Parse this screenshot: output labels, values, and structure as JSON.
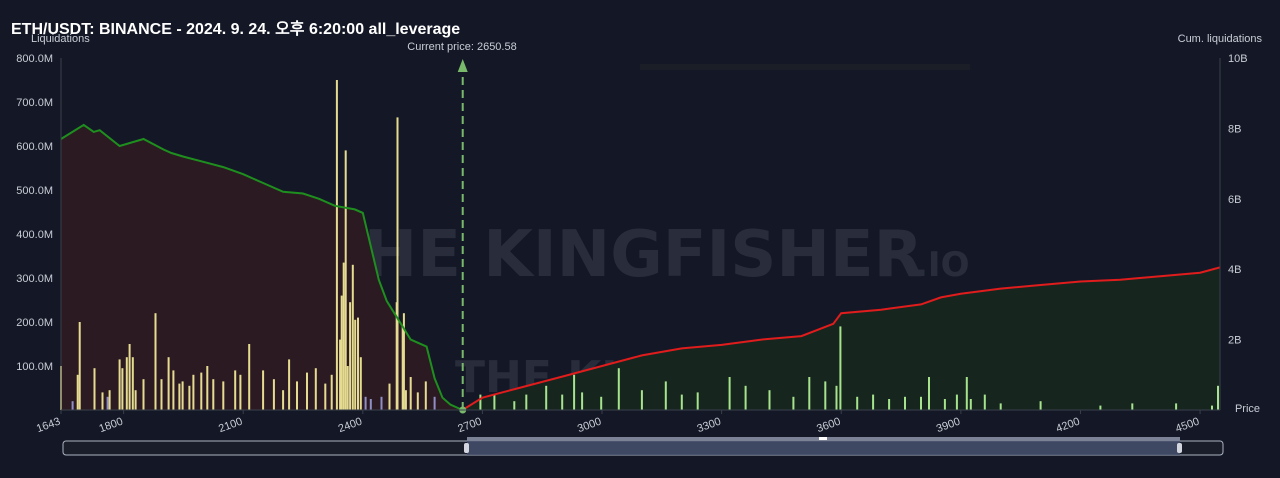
{
  "header": {
    "title": "ETH/USDT: BINANCE - 2024. 9. 24. 오후 6:20:00 all_leverage"
  },
  "watermark": {
    "text": "THE KINGFISHER",
    "suffix": ".IO"
  },
  "colors": {
    "background": "#141826",
    "long_area": "#2b1a22",
    "short_area": "#16261f",
    "long_line": "#1e8f1e",
    "short_line": "#e01c1c",
    "bar_long": "#e6dc91",
    "bar_short": "#a6e38c",
    "bar_small": "#8f8fc6",
    "current_price": "#79b96c"
  },
  "chart_data": {
    "type": "bar",
    "xlabel": "Price",
    "ylabel_left": "Liquidations",
    "ylabel_right": "Cum. liquidations",
    "current_price_label": "Current price: 2650.58",
    "current_price": 2650.58,
    "xlim": [
      1643,
      4550
    ],
    "x_ticks": [
      "1643",
      "1800",
      "2100",
      "2400",
      "2700",
      "3000",
      "3300",
      "3600",
      "3900",
      "4200",
      "4500"
    ],
    "x_tick_values": [
      1643,
      1800,
      2100,
      2400,
      2700,
      3000,
      3300,
      3600,
      3900,
      4200,
      4500
    ],
    "ylim_left": [
      0,
      800
    ],
    "y_ticks_left": [
      "100.0M",
      "200.0M",
      "300.0M",
      "400.0M",
      "500.0M",
      "600.0M",
      "700.0M",
      "800.0M"
    ],
    "y_tick_values_left": [
      100,
      200,
      300,
      400,
      500,
      600,
      700,
      800
    ],
    "ylim_right": [
      0,
      10
    ],
    "y_ticks_right": [
      "2B",
      "4B",
      "6B",
      "8B",
      "10B"
    ],
    "y_tick_values_right": [
      2,
      4,
      6,
      8,
      10
    ],
    "cum_long": {
      "x": [
        1643,
        1700,
        1725,
        1740,
        1790,
        1850,
        1900,
        1920,
        1950,
        2000,
        2050,
        2100,
        2150,
        2200,
        2250,
        2290,
        2330,
        2380,
        2400,
        2440,
        2460,
        2490,
        2520,
        2540,
        2560,
        2580,
        2600,
        2620,
        2650
      ],
      "y": [
        7.7,
        8.1,
        7.9,
        7.95,
        7.5,
        7.7,
        7.4,
        7.3,
        7.2,
        7.05,
        6.9,
        6.7,
        6.45,
        6.2,
        6.15,
        6.0,
        5.8,
        5.7,
        5.6,
        3.7,
        3.1,
        2.55,
        2.0,
        1.9,
        1.8,
        0.9,
        0.35,
        0.15,
        0.0
      ]
    },
    "cum_short": {
      "x": [
        2650,
        2700,
        2800,
        2900,
        3000,
        3100,
        3200,
        3300,
        3400,
        3500,
        3580,
        3600,
        3700,
        3800,
        3850,
        3900,
        4000,
        4100,
        4200,
        4300,
        4400,
        4500,
        4550
      ],
      "y": [
        0.0,
        0.35,
        0.65,
        0.95,
        1.25,
        1.55,
        1.75,
        1.85,
        2.0,
        2.1,
        2.45,
        2.75,
        2.85,
        3.0,
        3.2,
        3.3,
        3.45,
        3.55,
        3.65,
        3.7,
        3.8,
        3.9,
        4.05
      ]
    },
    "bars": {
      "x": [
        1643,
        1672,
        1685,
        1690,
        1727,
        1747,
        1760,
        1765,
        1790,
        1797,
        1808,
        1815,
        1823,
        1830,
        1850,
        1880,
        1895,
        1913,
        1925,
        1940,
        1948,
        1965,
        1975,
        1995,
        2010,
        2025,
        2050,
        2080,
        2093,
        2115,
        2150,
        2177,
        2200,
        2215,
        2235,
        2260,
        2282,
        2306,
        2322,
        2335,
        2343,
        2347,
        2352,
        2357,
        2362,
        2368,
        2375,
        2381,
        2388,
        2395,
        2407,
        2420,
        2447,
        2467,
        2485,
        2487,
        2500,
        2503,
        2508,
        2520,
        2538,
        2558,
        2580,
        2695,
        2730,
        2780,
        2810,
        2860,
        2900,
        2930,
        2950,
        2998,
        3042,
        3100,
        3160,
        3200,
        3240,
        3320,
        3360,
        3420,
        3480,
        3520,
        3560,
        3588,
        3598,
        3640,
        3680,
        3720,
        3760,
        3800,
        3820,
        3860,
        3890,
        3915,
        3925,
        3960,
        4000,
        4100,
        4250,
        4330,
        4440,
        4530,
        4545
      ],
      "y": [
        100,
        20,
        80,
        200,
        95,
        40,
        30,
        45,
        115,
        95,
        120,
        150,
        120,
        45,
        70,
        220,
        70,
        120,
        90,
        60,
        65,
        55,
        80,
        85,
        100,
        70,
        65,
        90,
        80,
        150,
        90,
        70,
        45,
        115,
        65,
        85,
        95,
        60,
        80,
        750,
        160,
        260,
        335,
        590,
        100,
        245,
        330,
        205,
        210,
        120,
        30,
        25,
        30,
        60,
        245,
        665,
        190,
        220,
        45,
        75,
        40,
        65,
        30,
        35,
        35,
        20,
        35,
        55,
        35,
        80,
        40,
        30,
        95,
        45,
        65,
        35,
        40,
        75,
        55,
        45,
        30,
        75,
        65,
        55,
        190,
        30,
        35,
        25,
        30,
        30,
        75,
        25,
        35,
        75,
        25,
        35,
        15,
        20,
        10,
        15,
        15,
        10,
        55
      ]
    }
  }
}
